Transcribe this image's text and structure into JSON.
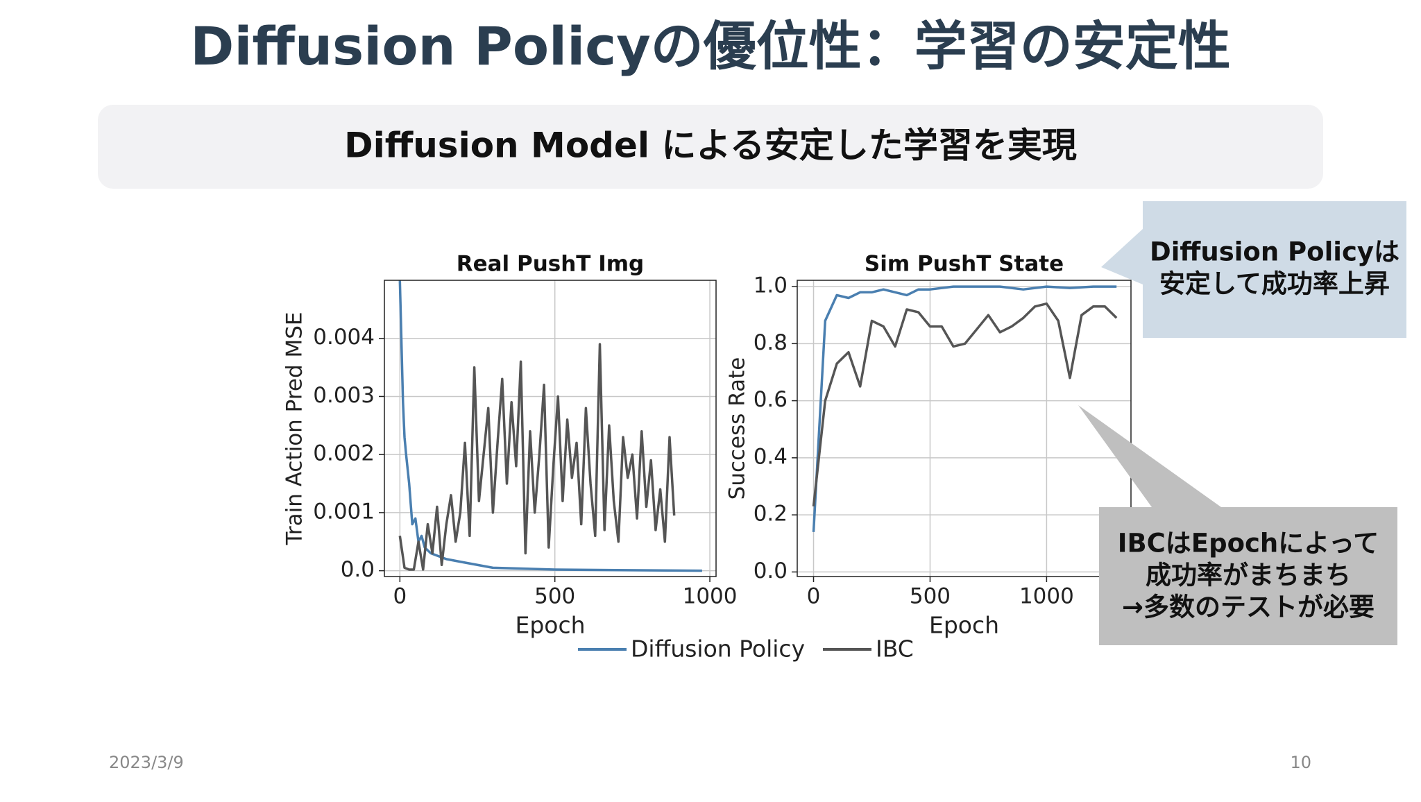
{
  "title": "Diffusion Policyの優位性：学習の安定性",
  "subtitle": "Diffusion Model による安定した学習を実現",
  "callouts": [
    {
      "lines": [
        "Diffusion Policyは",
        "安定して成功率上昇"
      ]
    },
    {
      "lines": [
        "IBCはEpochによって",
        "成功率がまちまち",
        "→多数のテストが必要"
      ]
    }
  ],
  "date": "2023/3/9",
  "page": "10",
  "chart_data": [
    {
      "type": "line",
      "title": "Real PushT Img",
      "x_label": "Epoch",
      "y_label": "Train Action Pred MSE",
      "xlim": [
        -50,
        1020
      ],
      "ylim": [
        -0.0001,
        0.005
      ],
      "xticks": [
        0,
        500,
        1000
      ],
      "yticks": [
        {
          "value": 0,
          "label": "0.0"
        },
        0.001,
        0.002,
        0.003,
        0.004
      ],
      "grid": true,
      "series": [
        {
          "name": "Diffusion Policy",
          "color": "#4a7fb0",
          "x": [
            0,
            10,
            15,
            20,
            30,
            40,
            50,
            60,
            70,
            80,
            100,
            150,
            200,
            300,
            500,
            700,
            975
          ],
          "values": [
            0.005,
            0.0029,
            0.0023,
            0.002,
            0.0015,
            0.0008,
            0.0009,
            0.0005,
            0.0006,
            0.0004,
            0.0003,
            0.0002,
            0.00015,
            5e-05,
            2e-05,
            1e-05,
            0
          ]
        },
        {
          "name": "IBC",
          "color": "#555555",
          "x": [
            0,
            15,
            30,
            45,
            60,
            75,
            90,
            105,
            120,
            135,
            150,
            165,
            180,
            195,
            210,
            225,
            240,
            255,
            270,
            285,
            300,
            315,
            330,
            345,
            360,
            375,
            390,
            405,
            420,
            435,
            450,
            465,
            480,
            495,
            510,
            525,
            540,
            555,
            570,
            585,
            600,
            615,
            630,
            645,
            660,
            675,
            690,
            705,
            720,
            735,
            750,
            765,
            780,
            795,
            810,
            825,
            840,
            855,
            870,
            885
          ],
          "values": [
            0.0006,
            5e-05,
            2e-05,
            2e-05,
            0.0005,
            2e-05,
            0.0008,
            0.0003,
            0.0011,
            0.0001,
            0.0008,
            0.0013,
            0.0005,
            0.001,
            0.0022,
            0.0006,
            0.0035,
            0.0012,
            0.002,
            0.0028,
            0.001,
            0.0022,
            0.0033,
            0.0015,
            0.0029,
            0.0018,
            0.0036,
            0.0003,
            0.0024,
            0.001,
            0.002,
            0.0032,
            0.0004,
            0.0018,
            0.003,
            0.0012,
            0.0026,
            0.0016,
            0.0022,
            0.0008,
            0.0028,
            0.0015,
            0.0006,
            0.0039,
            0.0007,
            0.0025,
            0.0012,
            0.0005,
            0.0023,
            0.0016,
            0.002,
            0.0009,
            0.0024,
            0.0011,
            0.0019,
            0.0007,
            0.0014,
            0.0005,
            0.0023,
            0.00095
          ]
        }
      ]
    },
    {
      "type": "line",
      "title": "Sim PushT State",
      "x_label": "Epoch",
      "y_label": "Success Rate",
      "xlim": [
        -70,
        1362
      ],
      "ylim": [
        -0.016,
        1.022
      ],
      "xticks": [
        0,
        500,
        1000
      ],
      "yticks": [
        {
          "value": 0,
          "label": "0.0"
        },
        0.2,
        0.4,
        0.6,
        0.8,
        {
          "value": 1,
          "label": "1.0"
        }
      ],
      "grid": true,
      "series": [
        {
          "name": "Diffusion Policy",
          "color": "#4a7fb0",
          "x": [
            0,
            50,
            100,
            150,
            200,
            250,
            300,
            350,
            400,
            450,
            500,
            600,
            700,
            800,
            900,
            1000,
            1100,
            1200,
            1300
          ],
          "values": [
            0.14,
            0.88,
            0.97,
            0.96,
            0.98,
            0.98,
            0.99,
            0.98,
            0.97,
            0.99,
            0.99,
            1.0,
            1.0,
            1.0,
            0.99,
            1.0,
            0.995,
            1.0,
            1.0
          ]
        },
        {
          "name": "IBC",
          "color": "#555555",
          "x": [
            0,
            50,
            100,
            150,
            200,
            250,
            300,
            350,
            400,
            450,
            500,
            550,
            600,
            650,
            700,
            750,
            800,
            850,
            900,
            950,
            1000,
            1050,
            1100,
            1150,
            1200,
            1250,
            1300
          ],
          "values": [
            0.23,
            0.6,
            0.73,
            0.77,
            0.65,
            0.88,
            0.86,
            0.79,
            0.92,
            0.91,
            0.86,
            0.86,
            0.79,
            0.8,
            0.85,
            0.9,
            0.84,
            0.86,
            0.89,
            0.93,
            0.94,
            0.88,
            0.68,
            0.9,
            0.93,
            0.93,
            0.89
          ]
        }
      ]
    }
  ]
}
